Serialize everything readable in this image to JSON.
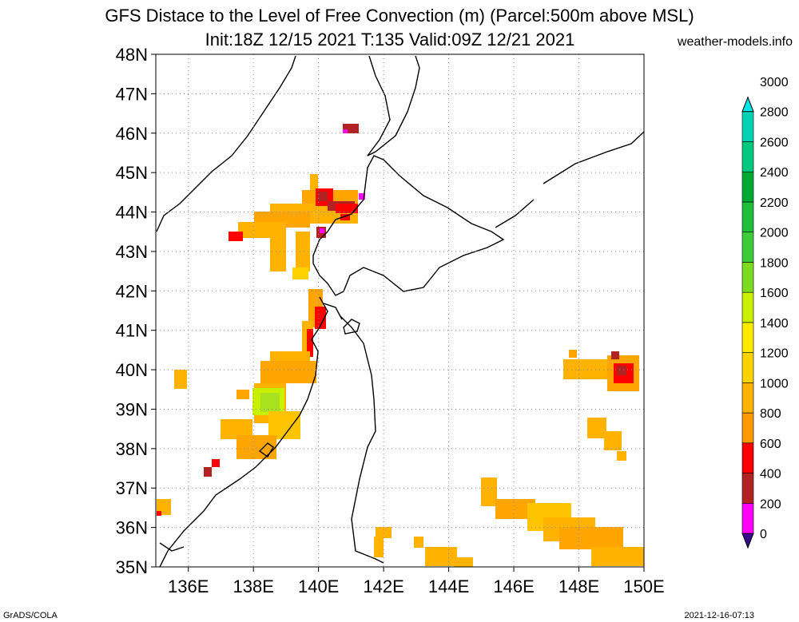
{
  "header": {
    "title": "GFS Distace to the Level of Free Convection (m) (Parcel:500m above MSL)",
    "subtitle": "Init:18Z 12/15 2021 T:135 Valid:09Z 12/21 2021",
    "credit": "weather-models.info"
  },
  "footer": {
    "left": "GrADS/COLA",
    "right": "2021-12-16-07:13"
  },
  "map": {
    "lat_range": [
      35,
      48
    ],
    "lon_range": [
      135,
      150
    ],
    "lat_labels": [
      "35N",
      "36N",
      "37N",
      "38N",
      "39N",
      "40N",
      "41N",
      "42N",
      "43N",
      "44N",
      "45N",
      "46N",
      "47N",
      "48N"
    ],
    "lon_labels": [
      "136E",
      "138E",
      "140E",
      "142E",
      "144E",
      "146E",
      "148E",
      "150E"
    ],
    "grid": "dotted"
  },
  "colorbar": {
    "labels": [
      "0",
      "200",
      "400",
      "600",
      "800",
      "1000",
      "1200",
      "1400",
      "1600",
      "1800",
      "2000",
      "2200",
      "2400",
      "2600",
      "2800",
      "3000"
    ],
    "colors": [
      "#3a0a8c",
      "#ff00ff",
      "#b22222",
      "#ff0000",
      "#ff9900",
      "#ffb300",
      "#ffd200",
      "#ffeb00",
      "#c8f000",
      "#7ddc1f",
      "#3ccc3c",
      "#1fbf3a",
      "#00aa33",
      "#00c87d",
      "#00d4b4",
      "#00e6e6"
    ]
  }
}
